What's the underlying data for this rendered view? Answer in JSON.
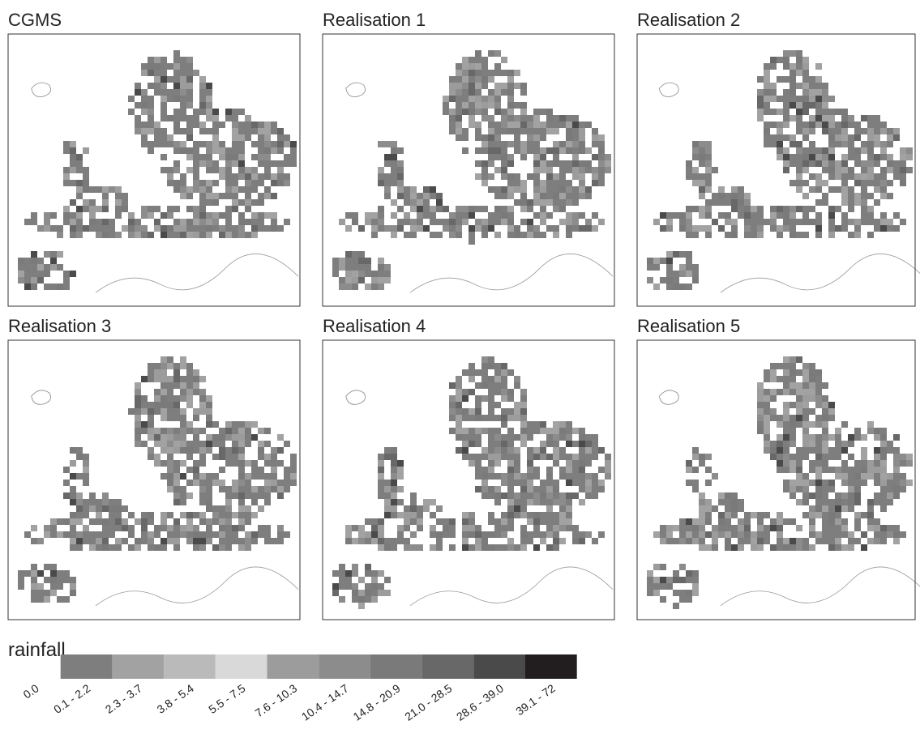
{
  "panels": [
    {
      "title": "CGMS"
    },
    {
      "title": "Realisation 1"
    },
    {
      "title": "Realisation 2"
    },
    {
      "title": "Realisation 3"
    },
    {
      "title": "Realisation 4"
    },
    {
      "title": "Realisation 5"
    }
  ],
  "legend": {
    "title": "rainfall",
    "items": [
      {
        "label": "0.0",
        "color": "#ffffff"
      },
      {
        "label": "0.1 - 2.2",
        "color": "#7e7e7e"
      },
      {
        "label": "2.3 - 3.7",
        "color": "#a2a2a2"
      },
      {
        "label": "3.8 - 5.4",
        "color": "#bababa"
      },
      {
        "label": "5.5 - 7.5",
        "color": "#d9d9d9"
      },
      {
        "label": "7.6 - 10.3",
        "color": "#9c9c9c"
      },
      {
        "label": "10.4 - 14.7",
        "color": "#8c8c8c"
      },
      {
        "label": "14.8 - 20.9",
        "color": "#7a7a7a"
      },
      {
        "label": "21.0 - 28.5",
        "color": "#686868"
      },
      {
        "label": "28.6 - 39.0",
        "color": "#4a4a4a"
      },
      {
        "label": "39.1 - 72",
        "color": "#221e1f"
      }
    ]
  }
}
